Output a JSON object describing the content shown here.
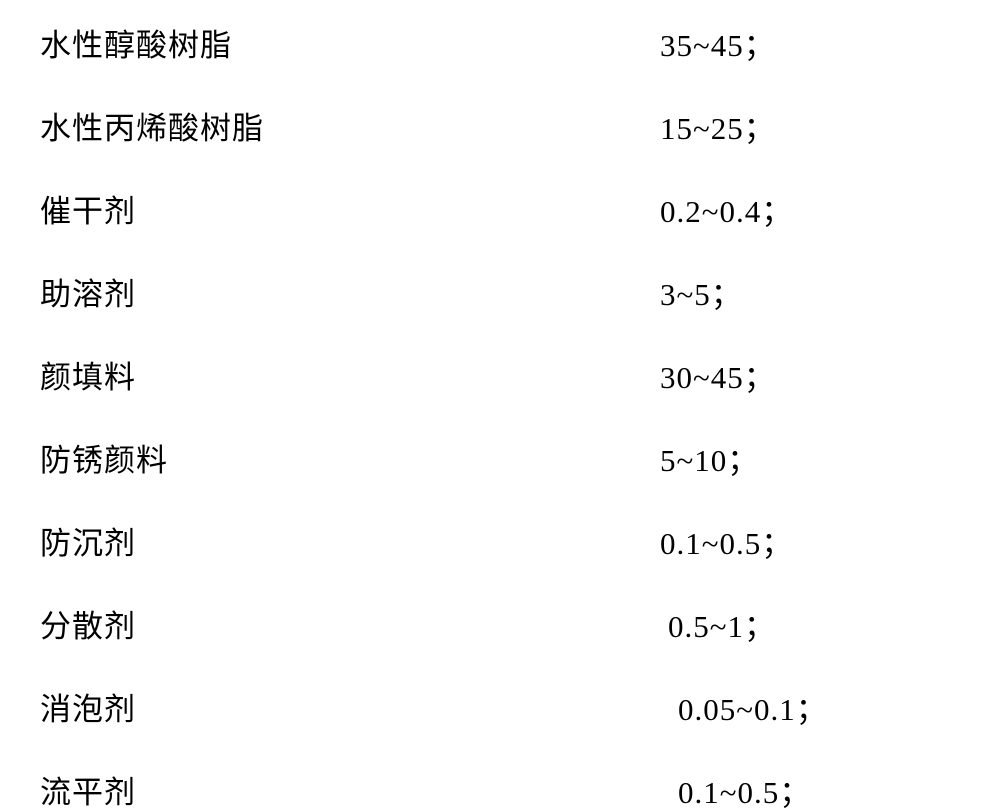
{
  "table": {
    "rows": [
      {
        "label": "水性醇酸树脂",
        "value": "35~45；",
        "indent": 0
      },
      {
        "label": "水性丙烯酸树脂",
        "value": "15~25；",
        "indent": 0
      },
      {
        "label": "催干剂",
        "value": "0.2~0.4；",
        "indent": 0
      },
      {
        "label": "助溶剂",
        "value": "3~5；",
        "indent": 0
      },
      {
        "label": "颜填料",
        "value": "30~45；",
        "indent": 0
      },
      {
        "label": "防锈颜料",
        "value": "5~10；",
        "indent": 0
      },
      {
        "label": "防沉剂",
        "value": "0.1~0.5；",
        "indent": 0
      },
      {
        "label": "分散剂",
        "value": "0.5~1；",
        "indent": 1
      },
      {
        "label": "消泡剂",
        "value": "0.05~0.1；",
        "indent": 2
      },
      {
        "label": "流平剂",
        "value": "0.1~0.5；",
        "indent": 2
      }
    ],
    "styling": {
      "font_size": 31,
      "font_family": "SimSun",
      "text_color": "#000000",
      "background_color": "#ffffff",
      "row_spacing": 38,
      "label_width": 620,
      "letter_spacing": 1
    }
  }
}
